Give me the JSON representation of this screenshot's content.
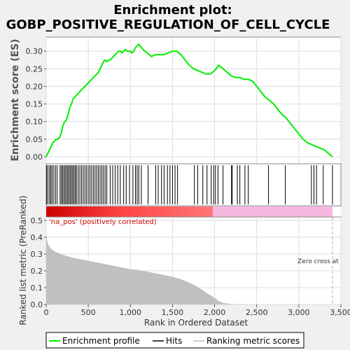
{
  "chart_data": {
    "type": "line",
    "title_line1": "Enrichment plot:",
    "title_line2": "GOBP_POSITIVE_REGULATION_OF_CELL_CYCLE",
    "es_panel": {
      "ylabel": "Enrichment score (ES)",
      "yticks": [
        "0.00",
        "0.05",
        "0.10",
        "0.15",
        "0.20",
        "0.25",
        "0.30"
      ],
      "ylim": [
        -0.02,
        0.34
      ],
      "series_name": "Enrichment profile",
      "color": "#00ee00",
      "x": [
        0,
        20,
        40,
        60,
        80,
        100,
        120,
        140,
        160,
        180,
        200,
        220,
        240,
        260,
        280,
        300,
        320,
        340,
        360,
        380,
        400,
        420,
        440,
        460,
        480,
        500,
        520,
        540,
        560,
        580,
        600,
        620,
        640,
        660,
        680,
        700,
        720,
        740,
        760,
        780,
        800,
        820,
        840,
        860,
        880,
        900,
        920,
        940,
        960,
        980,
        1000,
        1020,
        1040,
        1060,
        1080,
        1100,
        1150,
        1200,
        1250,
        1300,
        1350,
        1400,
        1450,
        1500,
        1550,
        1600,
        1650,
        1700,
        1750,
        1800,
        1850,
        1900,
        1950,
        2000,
        2050,
        2100,
        2150,
        2200,
        2250,
        2300,
        2350,
        2400,
        2450,
        2500,
        2550,
        2600,
        2650,
        2700,
        2750,
        2800,
        2850,
        2900,
        2950,
        3000,
        3050,
        3100,
        3150,
        3200,
        3250,
        3300,
        3350,
        3400
      ],
      "values": [
        0.0,
        0.01,
        0.02,
        0.03,
        0.04,
        0.045,
        0.05,
        0.05,
        0.055,
        0.07,
        0.09,
        0.1,
        0.105,
        0.12,
        0.14,
        0.15,
        0.165,
        0.17,
        0.175,
        0.18,
        0.185,
        0.19,
        0.195,
        0.2,
        0.205,
        0.21,
        0.215,
        0.22,
        0.225,
        0.23,
        0.235,
        0.24,
        0.25,
        0.26,
        0.27,
        0.275,
        0.27,
        0.275,
        0.275,
        0.28,
        0.285,
        0.29,
        0.295,
        0.3,
        0.3,
        0.295,
        0.3,
        0.305,
        0.3,
        0.3,
        0.3,
        0.295,
        0.3,
        0.31,
        0.315,
        0.32,
        0.305,
        0.295,
        0.285,
        0.29,
        0.29,
        0.29,
        0.295,
        0.3,
        0.3,
        0.29,
        0.275,
        0.26,
        0.25,
        0.245,
        0.24,
        0.235,
        0.235,
        0.245,
        0.26,
        0.25,
        0.24,
        0.23,
        0.225,
        0.225,
        0.22,
        0.22,
        0.215,
        0.2,
        0.185,
        0.17,
        0.16,
        0.15,
        0.135,
        0.12,
        0.11,
        0.095,
        0.08,
        0.065,
        0.05,
        0.04,
        0.035,
        0.03,
        0.025,
        0.02,
        0.01,
        0.0
      ]
    },
    "hits": [
      5,
      20,
      40,
      55,
      70,
      90,
      110,
      130,
      165,
      180,
      195,
      210,
      225,
      240,
      255,
      270,
      285,
      300,
      315,
      330,
      345,
      360,
      380,
      400,
      420,
      440,
      460,
      480,
      500,
      520,
      540,
      560,
      580,
      600,
      620,
      640,
      660,
      680,
      700,
      720,
      760,
      790,
      820,
      850,
      880,
      920,
      950,
      990,
      1030,
      1060,
      1080,
      1100,
      1130,
      1210,
      1300,
      1330,
      1370,
      1400,
      1440,
      1470,
      1500,
      1530,
      1560,
      1760,
      1800,
      1860,
      1910,
      1960,
      1990,
      2010,
      2040,
      2100,
      2200,
      2210,
      2270,
      2300,
      2360,
      2400,
      2640,
      2840,
      3150,
      3180,
      3210,
      3290,
      3400
    ],
    "x_axis": {
      "label": "Rank in Ordered Dataset",
      "ticks": [
        0,
        500,
        1000,
        1500,
        2000,
        2500,
        3000,
        3500
      ],
      "tick_labels": [
        "0",
        "500",
        "1,000",
        "1,500",
        "2,000",
        "2,500",
        "3,000",
        "3,500"
      ],
      "xlim": [
        0,
        3500
      ]
    },
    "metric_panel": {
      "ylabel": "Ranked list metric (PreRanked)",
      "yticks": [
        "0.0",
        "0.1",
        "0.2",
        "0.3",
        "0.4",
        "0.5"
      ],
      "ylim": [
        0,
        0.52
      ],
      "annotation_pos": "'na_pos' (positively correlated)",
      "annotation_zero": "Zero cross at",
      "zero_cross": 3400,
      "color": "#c0c0c0",
      "x": [
        0,
        10,
        30,
        60,
        100,
        150,
        200,
        300,
        400,
        500,
        600,
        700,
        800,
        900,
        1000,
        1100,
        1200,
        1300,
        1400,
        1500,
        1600,
        1700,
        1800,
        1900,
        1950,
        2000,
        2050,
        2100,
        2150,
        2200,
        2300,
        2500,
        3000,
        3400
      ],
      "values": [
        0.42,
        0.38,
        0.35,
        0.33,
        0.315,
        0.305,
        0.295,
        0.28,
        0.27,
        0.26,
        0.25,
        0.24,
        0.23,
        0.22,
        0.21,
        0.205,
        0.195,
        0.185,
        0.175,
        0.165,
        0.15,
        0.13,
        0.105,
        0.07,
        0.055,
        0.04,
        0.02,
        0.01,
        0.005,
        0.002,
        0.001,
        0.0,
        0.0,
        0.0
      ]
    },
    "legend": {
      "items": [
        {
          "label": "Enrichment profile",
          "color": "#00ee00"
        },
        {
          "label": "Hits",
          "color": "#000000"
        },
        {
          "label": "Ranking metric scores",
          "color": "#c0c0c0"
        }
      ]
    }
  }
}
